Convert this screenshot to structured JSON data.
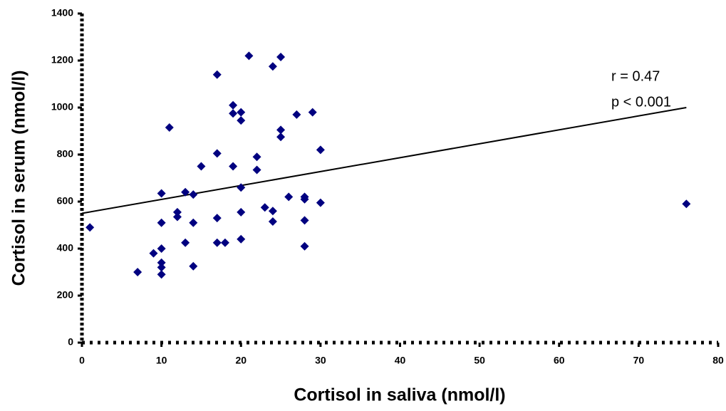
{
  "chart_data": {
    "type": "scatter",
    "x_label": "Cortisol in saliva (nmol/l)",
    "y_label": "Cortisol in serum (nmol/l)",
    "annotations": [
      "r = 0.47",
      "p < 0.001"
    ],
    "xlim": [
      0,
      80
    ],
    "xticks": [
      0,
      10,
      20,
      30,
      40,
      50,
      60,
      70,
      80
    ],
    "ylim": [
      0,
      1400
    ],
    "yticks": [
      0,
      200,
      400,
      600,
      800,
      1000,
      1200,
      1400
    ],
    "series": [
      {
        "color": "#000080",
        "x": [
          1,
          7,
          9,
          10,
          10,
          10,
          10,
          10,
          10,
          11,
          12,
          12,
          13,
          13,
          14,
          14,
          14,
          15,
          17,
          17,
          17,
          17,
          18,
          19,
          19,
          19,
          20,
          20,
          20,
          20,
          20,
          21,
          22,
          22,
          23,
          24,
          24,
          24,
          25,
          25,
          25,
          26,
          27,
          28,
          28,
          28,
          28,
          29,
          30,
          30,
          76
        ],
        "values": [
          490,
          300,
          380,
          290,
          320,
          340,
          400,
          510,
          635,
          915,
          555,
          535,
          640,
          425,
          630,
          510,
          325,
          750,
          805,
          1140,
          530,
          425,
          425,
          1010,
          975,
          750,
          980,
          945,
          660,
          555,
          440,
          1220,
          790,
          735,
          575,
          1175,
          560,
          515,
          1215,
          905,
          875,
          620,
          970,
          620,
          610,
          520,
          410,
          980,
          820,
          595,
          590
        ]
      }
    ],
    "trendline": {
      "x": [
        0,
        76
      ],
      "values": [
        550,
        1000
      ],
      "color": "#000000"
    }
  }
}
